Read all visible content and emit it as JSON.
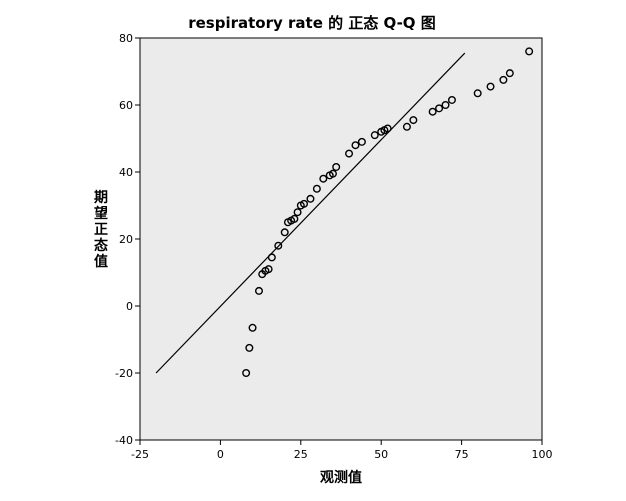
{
  "chart_data": {
    "type": "scatter",
    "title": "respiratory rate 的 正态 Q-Q 图",
    "xlabel": "观测值",
    "ylabel": "期望正态值",
    "xlim": [
      -25,
      100
    ],
    "ylim": [
      -40,
      80
    ],
    "x_ticks": [
      "-25",
      "0",
      "25",
      "50",
      "75",
      "100"
    ],
    "y_ticks": [
      "-40",
      "-20",
      "0",
      "20",
      "40",
      "60",
      "80"
    ],
    "grid": false,
    "plot_background": "#ebebeb",
    "marker_color": "#000000",
    "reference_line": {
      "x": [
        -20,
        76
      ],
      "y": [
        -20,
        75.5
      ]
    },
    "series": [
      {
        "x": [
          8,
          9,
          10,
          12,
          13,
          14,
          15,
          16,
          18,
          20,
          21,
          22,
          23,
          24,
          25,
          26,
          28,
          30,
          32,
          34,
          35,
          36,
          40,
          42,
          44,
          48,
          50,
          51,
          52,
          58,
          60,
          66,
          68,
          70,
          72,
          80,
          84,
          88,
          90,
          96
        ],
        "y": [
          -20,
          -12.5,
          -6.5,
          4.5,
          9.5,
          10.5,
          11,
          14.5,
          18,
          22,
          25,
          25.5,
          26,
          28,
          30,
          30.5,
          32,
          35,
          38,
          39,
          39.5,
          41.5,
          45.5,
          48,
          49,
          51,
          52,
          52.5,
          53,
          53.5,
          55.5,
          58,
          59,
          60,
          61.5,
          63.5,
          65.5,
          67.5,
          69.5,
          76
        ]
      }
    ]
  }
}
